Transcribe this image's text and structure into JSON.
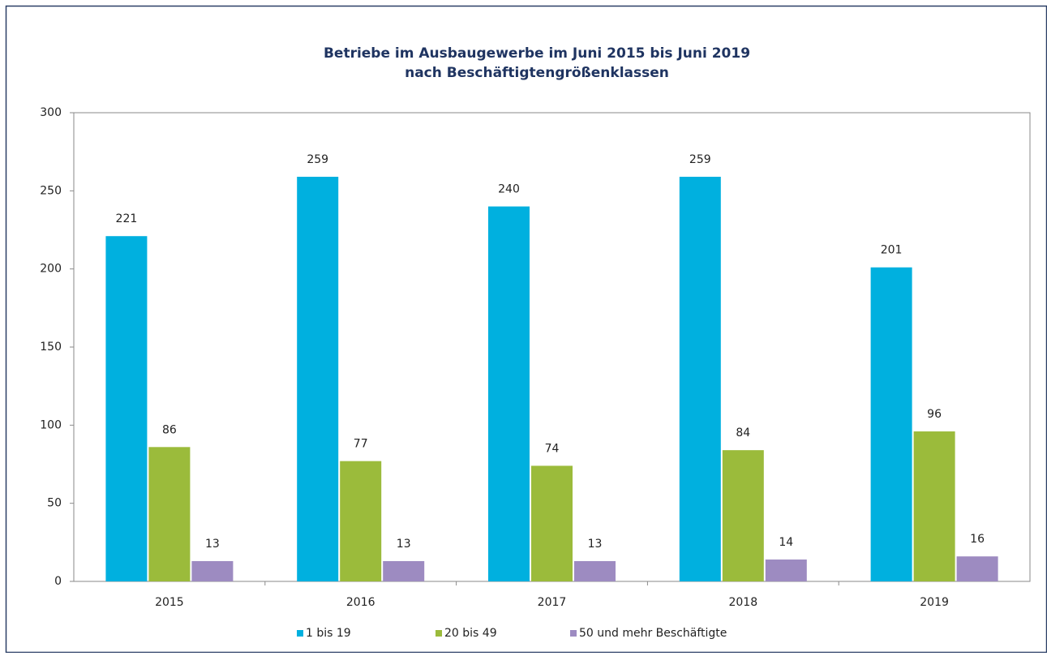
{
  "chart_data": {
    "type": "bar",
    "title": "Betriebe im Ausbaugewerbe im Juni 2015 bis Juni 2019",
    "subtitle": "nach Beschäftigtengrößenklassen",
    "categories": [
      "2015",
      "2016",
      "2017",
      "2018",
      "2019"
    ],
    "series": [
      {
        "name": "1 bis 19",
        "color": "#00b0df",
        "values": [
          221,
          259,
          240,
          259,
          201
        ]
      },
      {
        "name": "20 bis 49",
        "color": "#9bbb3b",
        "values": [
          86,
          77,
          74,
          84,
          96
        ]
      },
      {
        "name": "50 und mehr Beschäftigte",
        "color": "#9d8bc1",
        "values": [
          13,
          13,
          13,
          14,
          16
        ]
      }
    ],
    "ylim": [
      0,
      300
    ],
    "yticks": [
      0,
      50,
      100,
      150,
      200,
      250,
      300
    ],
    "grid": false,
    "legend": "bottom"
  }
}
